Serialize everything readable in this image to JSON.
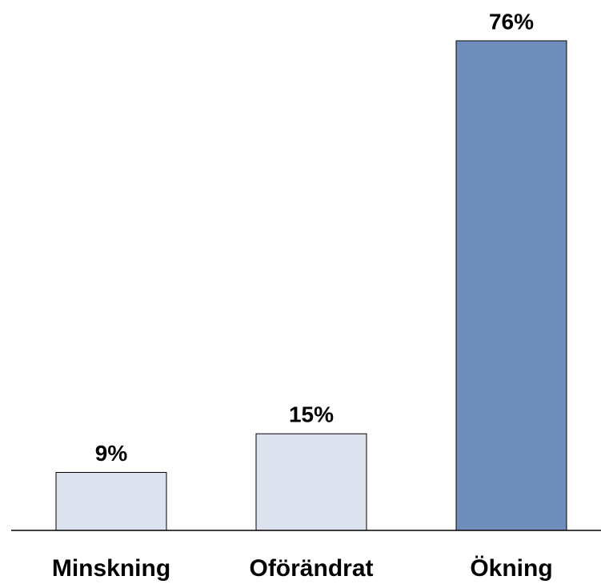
{
  "chart_data": {
    "type": "bar",
    "categories": [
      "Minskning",
      "Oförändrat",
      "Ökning"
    ],
    "values": [
      9,
      15,
      76
    ],
    "value_labels": [
      "9%",
      "15%",
      "76%"
    ],
    "colors": [
      "#dde3ee",
      "#dde3ee",
      "#6f8fba"
    ],
    "ylim": [
      0,
      76
    ]
  }
}
